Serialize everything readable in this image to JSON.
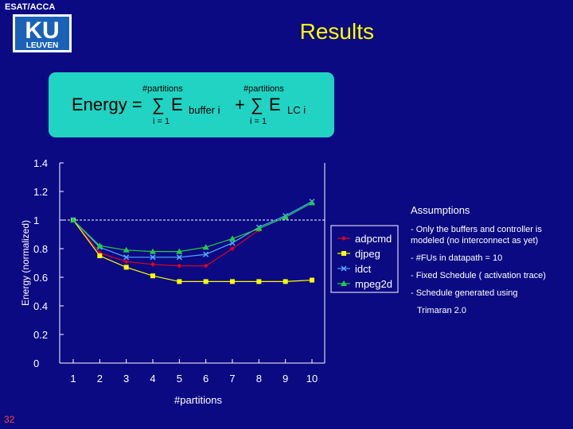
{
  "header": {
    "org": "ESAT/ACCA",
    "logo_text_top": "KU",
    "logo_text_bottom": "LEUVEN",
    "title": "Results"
  },
  "formula": {
    "lhs": "Energy =",
    "sigma1": "∑",
    "e1": "E",
    "sub1": "buffer i",
    "plus": "+",
    "sigma2": "∑",
    "e2": "E",
    "sub2": "LC i",
    "upper1": "#partitions",
    "lower1": "i = 1",
    "upper2": "#partitions",
    "lower2": "i = 1"
  },
  "chart_data": {
    "type": "line",
    "x": [
      1,
      2,
      3,
      4,
      5,
      6,
      7,
      8,
      9,
      10
    ],
    "xticks": [
      "1",
      "2",
      "3",
      "4",
      "5",
      "6",
      "7",
      "8",
      "9",
      "10"
    ],
    "yticks": [
      "0",
      "0.2",
      "0.4",
      "0.6",
      "0.8",
      "1",
      "1.2",
      "1.4"
    ],
    "ylim": [
      0,
      1.4
    ],
    "xlabel": "#partitions",
    "ylabel": "Energy (normalized)",
    "reference_line": 1,
    "grid": false,
    "legend_position": "right",
    "series": [
      {
        "name": "adpcmd",
        "color": "#e0001b",
        "marker": "diamond",
        "values": [
          1,
          0.77,
          0.71,
          0.69,
          0.68,
          0.68,
          0.8,
          0.93,
          null,
          null
        ]
      },
      {
        "name": "djpeg",
        "color": "#ffff00",
        "marker": "square",
        "values": [
          1,
          0.75,
          0.67,
          0.61,
          0.57,
          0.57,
          0.57,
          0.57,
          0.57,
          0.58
        ]
      },
      {
        "name": "idct",
        "color": "#55a7ff",
        "marker": "x",
        "values": [
          1,
          0.81,
          0.74,
          0.74,
          0.74,
          0.76,
          0.84,
          0.95,
          1.03,
          1.13
        ]
      },
      {
        "name": "mpeg2d",
        "color": "#22cc44",
        "marker": "triangle",
        "values": [
          1,
          0.82,
          0.79,
          0.78,
          0.78,
          0.81,
          0.87,
          0.94,
          1.02,
          1.12
        ]
      }
    ]
  },
  "assumptions": {
    "title": "Assumptions",
    "items": [
      "- Only the buffers and controller is modeled (no interconnect as yet)",
      "- #FUs in datapath = 10",
      "- Fixed Schedule ( activation trace)",
      "- Schedule generated using",
      "Trimaran 2.0"
    ]
  },
  "footer": {
    "page_number": "32"
  }
}
